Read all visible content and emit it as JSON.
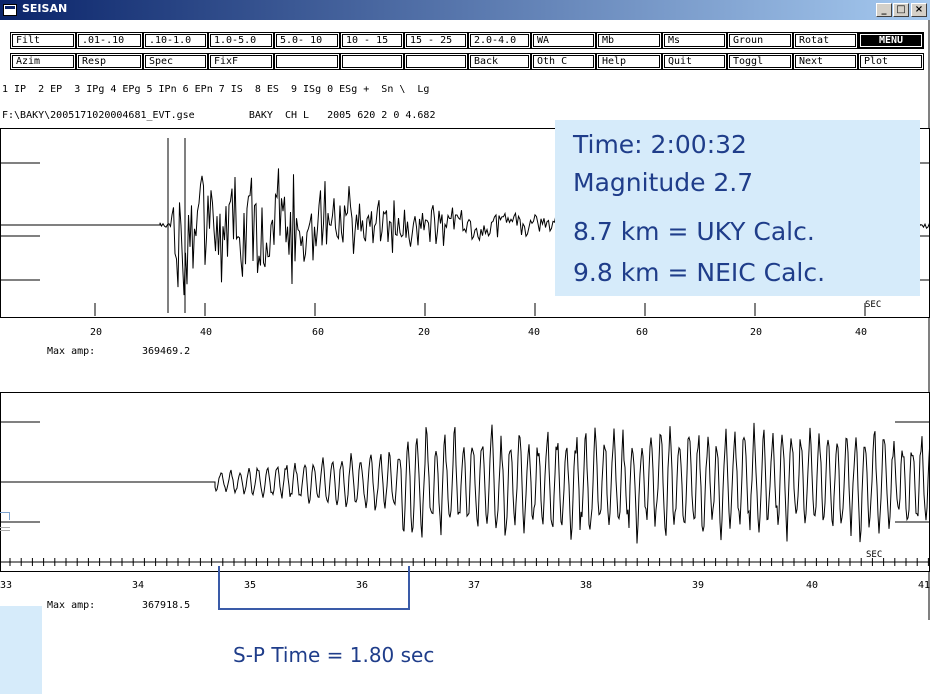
{
  "window": {
    "title": "SEISAN"
  },
  "toolbar": {
    "row1": [
      "Filt",
      ".01-.10",
      ".10-1.0",
      "1.0-5.0",
      "5.0- 10",
      "10 - 15",
      "15 - 25",
      "2.0-4.0",
      "WA",
      "Mb",
      "Ms",
      "Groun",
      "Rotat",
      "MENU"
    ],
    "row2": [
      "Azim",
      "Resp",
      "Spec",
      "FixF",
      "",
      "",
      "",
      "Back",
      "Oth C",
      "Help",
      "Quit",
      "Toggl",
      "Next",
      "Plot"
    ]
  },
  "phase_keys": "1 IP  2 EP  3 IPg 4 EPg 5 IPn 6 EPn 7 IS  8 ES  9 ISg 0 ESg +  Sn \\  Lg",
  "file_info": "F:\\BAKY\\2005171020004681_EVT.gse         BAKY  CH L   2005 620 2 0 4.682",
  "trace1": {
    "unit": "SEC",
    "tick_labels": [
      "20",
      "40",
      "60",
      "20",
      "40",
      "60",
      "20",
      "40"
    ],
    "max_amp_label": "Max amp:",
    "max_amp_value": "369469.2"
  },
  "trace2": {
    "unit": "SEC",
    "tick_labels": [
      "33",
      "34",
      "35",
      "36",
      "37",
      "38",
      "39",
      "40",
      "41"
    ],
    "max_amp_label": "Max amp:",
    "max_amp_value": "367918.5"
  },
  "info": {
    "time": "Time: 2:00:32",
    "magnitude": "Magnitude 2.7",
    "uky": "8.7 km = UKY Calc.",
    "neic": "9.8 km = NEIC Calc."
  },
  "sp_time": "S-P Time = 1.80 sec",
  "colors": {
    "overlay_bg": "#d6ebfa",
    "overlay_text": "#1f3d8a",
    "titlebar": "#0a246a"
  }
}
